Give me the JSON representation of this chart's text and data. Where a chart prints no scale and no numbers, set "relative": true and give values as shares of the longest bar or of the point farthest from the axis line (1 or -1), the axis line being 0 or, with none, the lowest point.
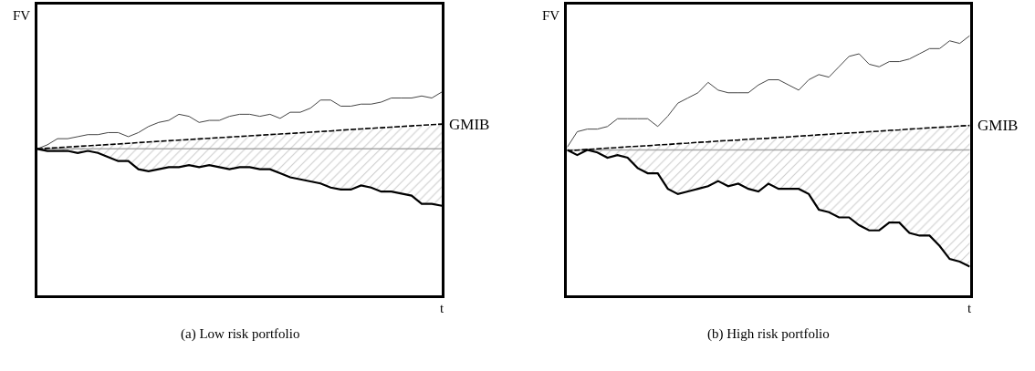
{
  "chart_data": [
    {
      "type": "line",
      "title": "(a) Low risk portfolio",
      "xlabel": "t",
      "ylabel": "FV",
      "relative": true,
      "categories": [
        null,
        null,
        null,
        null,
        null,
        null,
        null,
        null,
        null,
        null,
        null,
        null,
        null,
        null,
        null,
        null,
        null,
        null,
        null,
        null,
        null,
        null,
        null,
        null,
        null,
        null,
        null,
        null,
        null,
        null,
        null,
        null,
        null,
        null,
        null,
        null,
        null,
        null,
        null,
        null,
        null
      ],
      "series": [
        {
          "color": "#444444",
          "line_style": "solid",
          "values": [
            0.72,
            0.74,
            0.77,
            0.77,
            0.78,
            0.79,
            0.79,
            0.8,
            0.8,
            0.78,
            0.8,
            0.83,
            0.85,
            0.86,
            0.89,
            0.88,
            0.85,
            0.86,
            0.86,
            0.88,
            0.89,
            0.89,
            0.88,
            0.89,
            0.87,
            0.9,
            0.9,
            0.92,
            0.96,
            0.96,
            0.93,
            0.93,
            0.94,
            0.94,
            0.95,
            0.97,
            0.97,
            0.97,
            0.98,
            0.97,
            1
          ]
        },
        {
          "name": "GMIB",
          "color": "#000000",
          "line_style": "dashed",
          "values": [
            0.72,
            0.723,
            0.726,
            0.729,
            0.732,
            0.735,
            0.738,
            0.741,
            0.744,
            0.747,
            0.751,
            0.754,
            0.757,
            0.76,
            0.763,
            0.766,
            0.769,
            0.772,
            0.775,
            0.778,
            0.781,
            0.784,
            0.787,
            0.79,
            0.793,
            0.796,
            0.799,
            0.802,
            0.805,
            0.808,
            0.812,
            0.815,
            0.818,
            0.821,
            0.824,
            0.827,
            0.83,
            0.833,
            0.836,
            0.839,
            0.842
          ],
          "upper": [
            0.72,
            0.723,
            0.726,
            0.729,
            0.732,
            0.735,
            0.738,
            0.741,
            0.744,
            0.747,
            0.751,
            0.754,
            0.757,
            0.76,
            0.763,
            0.766,
            0.769,
            0.772,
            0.775,
            0.778,
            0.781,
            0.784,
            0.787,
            0.79,
            0.793,
            0.796,
            0.799,
            0.802,
            0.805,
            0.808,
            0.812,
            0.815,
            0.818,
            0.821,
            0.824,
            0.827,
            0.83,
            0.833,
            0.836,
            0.839,
            0.842
          ],
          "lower": [
            0.72,
            0.71,
            0.71,
            0.71,
            0.7,
            0.71,
            0.7,
            0.68,
            0.66,
            0.66,
            0.62,
            0.61,
            0.62,
            0.63,
            0.63,
            0.64,
            0.63,
            0.64,
            0.63,
            0.62,
            0.63,
            0.63,
            0.62,
            0.62,
            0.6,
            0.58,
            0.57,
            0.56,
            0.55,
            0.53,
            0.52,
            0.52,
            0.54,
            0.53,
            0.51,
            0.51,
            0.5,
            0.49,
            0.45,
            0.45,
            0.44
          ]
        },
        {
          "color": "#000000",
          "line_style": "solid",
          "values": [
            0.72,
            0.71,
            0.71,
            0.71,
            0.7,
            0.71,
            0.7,
            0.68,
            0.66,
            0.66,
            0.62,
            0.61,
            0.62,
            0.63,
            0.63,
            0.64,
            0.63,
            0.64,
            0.63,
            0.62,
            0.63,
            0.63,
            0.62,
            0.62,
            0.6,
            0.58,
            0.57,
            0.56,
            0.55,
            0.53,
            0.52,
            0.52,
            0.54,
            0.53,
            0.51,
            0.51,
            0.5,
            0.49,
            0.45,
            0.45,
            0.44
          ]
        }
      ],
      "ref_lines": [
        {
          "axis": "y",
          "value": 0.72,
          "color": "#aaaaaa",
          "line_style": "solid"
        }
      ]
    },
    {
      "type": "line",
      "title": "(b) High risk portfolio",
      "xlabel": "t",
      "ylabel": "FV",
      "relative": true,
      "categories": [
        null,
        null,
        null,
        null,
        null,
        null,
        null,
        null,
        null,
        null,
        null,
        null,
        null,
        null,
        null,
        null,
        null,
        null,
        null,
        null,
        null,
        null,
        null,
        null,
        null,
        null,
        null,
        null,
        null,
        null,
        null,
        null,
        null,
        null,
        null,
        null,
        null,
        null,
        null,
        null,
        null
      ],
      "series": [
        {
          "color": "#444444",
          "line_style": "solid",
          "values": [
            0.57,
            0.63,
            0.64,
            0.64,
            0.65,
            0.68,
            0.68,
            0.68,
            0.68,
            0.65,
            0.69,
            0.74,
            0.76,
            0.78,
            0.82,
            0.79,
            0.78,
            0.78,
            0.78,
            0.81,
            0.83,
            0.83,
            0.81,
            0.79,
            0.83,
            0.85,
            0.84,
            0.88,
            0.92,
            0.93,
            0.89,
            0.88,
            0.9,
            0.9,
            0.91,
            0.93,
            0.95,
            0.95,
            0.98,
            0.97,
            1
          ]
        },
        {
          "name": "GMIB",
          "color": "#000000",
          "line_style": "dashed",
          "values": [
            0.557,
            0.559,
            0.562,
            0.564,
            0.567,
            0.569,
            0.572,
            0.574,
            0.576,
            0.579,
            0.581,
            0.584,
            0.586,
            0.589,
            0.591,
            0.594,
            0.596,
            0.598,
            0.601,
            0.603,
            0.605,
            0.608,
            0.61,
            0.613,
            0.615,
            0.618,
            0.62,
            0.623,
            0.625,
            0.627,
            0.63,
            0.632,
            0.635,
            0.637,
            0.64,
            0.642,
            0.645,
            0.647,
            0.649,
            0.652,
            0.654
          ],
          "upper": [
            0.557,
            0.559,
            0.562,
            0.564,
            0.567,
            0.569,
            0.572,
            0.574,
            0.576,
            0.579,
            0.581,
            0.584,
            0.586,
            0.589,
            0.591,
            0.594,
            0.596,
            0.598,
            0.601,
            0.603,
            0.605,
            0.608,
            0.61,
            0.613,
            0.615,
            0.618,
            0.62,
            0.623,
            0.625,
            0.627,
            0.63,
            0.632,
            0.635,
            0.637,
            0.64,
            0.642,
            0.645,
            0.647,
            0.649,
            0.652,
            0.654
          ],
          "lower": [
            0.56,
            0.54,
            0.56,
            0.55,
            0.53,
            0.54,
            0.53,
            0.49,
            0.47,
            0.47,
            0.41,
            0.39,
            0.4,
            0.41,
            0.42,
            0.44,
            0.42,
            0.43,
            0.41,
            0.4,
            0.43,
            0.41,
            0.41,
            0.41,
            0.39,
            0.33,
            0.32,
            0.3,
            0.3,
            0.27,
            0.25,
            0.25,
            0.28,
            0.28,
            0.24,
            0.23,
            0.23,
            0.19,
            0.14,
            0.13,
            0.11
          ]
        },
        {
          "color": "#000000",
          "line_style": "solid",
          "values": [
            0.56,
            0.54,
            0.56,
            0.55,
            0.53,
            0.54,
            0.53,
            0.49,
            0.47,
            0.47,
            0.41,
            0.39,
            0.4,
            0.41,
            0.42,
            0.44,
            0.42,
            0.43,
            0.41,
            0.4,
            0.43,
            0.41,
            0.41,
            0.41,
            0.39,
            0.33,
            0.32,
            0.3,
            0.3,
            0.27,
            0.25,
            0.25,
            0.28,
            0.28,
            0.24,
            0.23,
            0.23,
            0.19,
            0.14,
            0.13,
            0.11
          ]
        }
      ],
      "ref_lines": [
        {
          "axis": "y",
          "value": 0.56,
          "color": "#aaaaaa",
          "line_style": "solid"
        }
      ]
    }
  ]
}
